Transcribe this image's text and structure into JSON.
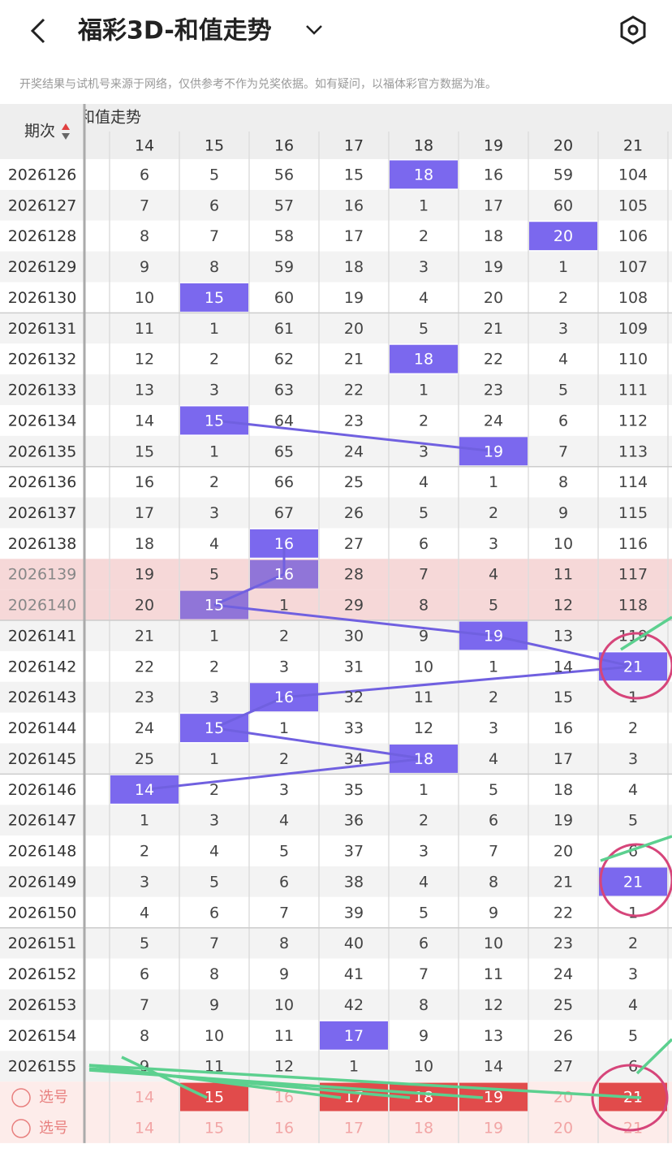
{
  "header": {
    "title": "福彩3D-和值走势",
    "notice": "开奖结果与试机号来源于网络，仅供参考不作为兑奖依据。如有疑问，以福体彩官方数据为准。"
  },
  "table": {
    "period_header": "期次",
    "section_title": "和值走势",
    "columns": [
      14,
      15,
      16,
      17,
      18,
      19,
      20,
      21
    ],
    "rows": [
      {
        "period": "2026126",
        "cells": [
          6,
          5,
          56,
          15,
          18,
          16,
          59,
          104
        ],
        "hit": 4
      },
      {
        "period": "2026127",
        "cells": [
          7,
          6,
          57,
          16,
          1,
          17,
          60,
          105
        ],
        "hit": null
      },
      {
        "period": "2026128",
        "cells": [
          8,
          7,
          58,
          17,
          2,
          18,
          20,
          106
        ],
        "hit": 6
      },
      {
        "period": "2026129",
        "cells": [
          9,
          8,
          59,
          18,
          3,
          19,
          1,
          107
        ],
        "hit": null
      },
      {
        "period": "2026130",
        "cells": [
          10,
          15,
          60,
          19,
          4,
          20,
          2,
          108
        ],
        "hit": 1
      },
      {
        "period": "2026131",
        "cells": [
          11,
          1,
          61,
          20,
          5,
          21,
          3,
          109
        ],
        "hit": null
      },
      {
        "period": "2026132",
        "cells": [
          12,
          2,
          62,
          21,
          18,
          22,
          4,
          110
        ],
        "hit": 4
      },
      {
        "period": "2026133",
        "cells": [
          13,
          3,
          63,
          22,
          1,
          23,
          5,
          111
        ],
        "hit": null
      },
      {
        "period": "2026134",
        "cells": [
          14,
          15,
          64,
          23,
          2,
          24,
          6,
          112
        ],
        "hit": 1
      },
      {
        "period": "2026135",
        "cells": [
          15,
          1,
          65,
          24,
          3,
          19,
          7,
          113
        ],
        "hit": 5
      },
      {
        "period": "2026136",
        "cells": [
          16,
          2,
          66,
          25,
          4,
          1,
          8,
          114
        ],
        "hit": null
      },
      {
        "period": "2026137",
        "cells": [
          17,
          3,
          67,
          26,
          5,
          2,
          9,
          115
        ],
        "hit": null
      },
      {
        "period": "2026138",
        "cells": [
          18,
          4,
          16,
          27,
          6,
          3,
          10,
          116
        ],
        "hit": 2
      },
      {
        "period": "2026139",
        "cells": [
          19,
          5,
          16,
          28,
          7,
          4,
          11,
          117
        ],
        "hit": 2,
        "highlighted": true
      },
      {
        "period": "2026140",
        "cells": [
          20,
          15,
          1,
          29,
          8,
          5,
          12,
          118
        ],
        "hit": 1,
        "highlighted": true
      },
      {
        "period": "2026141",
        "cells": [
          21,
          1,
          2,
          30,
          9,
          19,
          13,
          119
        ],
        "hit": 5
      },
      {
        "period": "2026142",
        "cells": [
          22,
          2,
          3,
          31,
          10,
          1,
          14,
          21
        ],
        "hit": 7
      },
      {
        "period": "2026143",
        "cells": [
          23,
          3,
          16,
          32,
          11,
          2,
          15,
          1
        ],
        "hit": 2
      },
      {
        "period": "2026144",
        "cells": [
          24,
          15,
          1,
          33,
          12,
          3,
          16,
          2
        ],
        "hit": 1
      },
      {
        "period": "2026145",
        "cells": [
          25,
          1,
          2,
          34,
          18,
          4,
          17,
          3
        ],
        "hit": 4
      },
      {
        "period": "2026146",
        "cells": [
          14,
          2,
          3,
          35,
          1,
          5,
          18,
          4
        ],
        "hit": 0
      },
      {
        "period": "2026147",
        "cells": [
          1,
          3,
          4,
          36,
          2,
          6,
          19,
          5
        ],
        "hit": null
      },
      {
        "period": "2026148",
        "cells": [
          2,
          4,
          5,
          37,
          3,
          7,
          20,
          6
        ],
        "hit": null
      },
      {
        "period": "2026149",
        "cells": [
          3,
          5,
          6,
          38,
          4,
          8,
          21,
          21
        ],
        "hit": 7
      },
      {
        "period": "2026150",
        "cells": [
          4,
          6,
          7,
          39,
          5,
          9,
          22,
          1
        ],
        "hit": null
      },
      {
        "period": "2026151",
        "cells": [
          5,
          7,
          8,
          40,
          6,
          10,
          23,
          2
        ],
        "hit": null
      },
      {
        "period": "2026152",
        "cells": [
          6,
          8,
          9,
          41,
          7,
          11,
          24,
          3
        ],
        "hit": null
      },
      {
        "period": "2026153",
        "cells": [
          7,
          9,
          10,
          42,
          8,
          12,
          25,
          4
        ],
        "hit": null
      },
      {
        "period": "2026154",
        "cells": [
          8,
          10,
          11,
          17,
          9,
          13,
          26,
          5
        ],
        "hit": 3
      },
      {
        "period": "2026155",
        "cells": [
          9,
          11,
          12,
          1,
          10,
          14,
          27,
          6
        ],
        "hit": null
      }
    ],
    "select_rows": [
      {
        "label": "选号",
        "selected": [
          1,
          3,
          4,
          5,
          7
        ]
      },
      {
        "label": "选号",
        "selected": []
      }
    ]
  }
}
